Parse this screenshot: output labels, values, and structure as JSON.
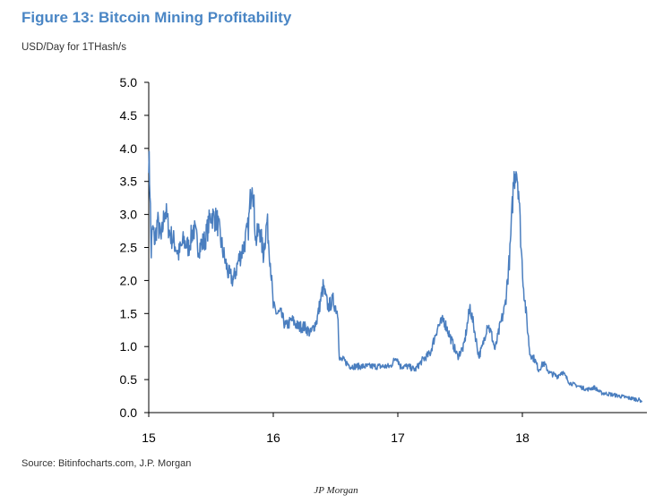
{
  "title": "Figure 13: Bitcoin Mining Profitability",
  "subtitle": "USD/Day for 1THash/s",
  "source": "Source: Bitinfocharts.com, J.P. Morgan",
  "credit": "JP Morgan",
  "colors": {
    "title": "#4a86c5",
    "series": "#4a7ebf",
    "axis": "#000000"
  },
  "chart_data": {
    "type": "line",
    "title": "Figure 13: Bitcoin Mining Profitability",
    "ylabel": "USD/Day for 1THash/s",
    "xlabel": "",
    "xlim": [
      15,
      19
    ],
    "ylim": [
      0,
      5
    ],
    "x_ticks": [
      15,
      16,
      17,
      18
    ],
    "x_tick_labels": [
      "15",
      "16",
      "17",
      "18"
    ],
    "y_ticks": [
      0,
      0.5,
      1,
      1.5,
      2,
      2.5,
      3,
      3.5,
      4,
      4.5,
      5
    ],
    "y_tick_labels": [
      "0.0",
      "0.5",
      "1.0",
      "1.5",
      "2.0",
      "2.5",
      "3.0",
      "3.5",
      "4.0",
      "4.5",
      "5.0"
    ],
    "grid": false,
    "series": [
      {
        "name": "USD/Day for 1THash/s",
        "x": [
          15.0,
          15.01,
          15.02,
          15.03,
          15.05,
          15.07,
          15.1,
          15.13,
          15.17,
          15.2,
          15.24,
          15.28,
          15.32,
          15.36,
          15.4,
          15.45,
          15.5,
          15.55,
          15.6,
          15.64,
          15.68,
          15.72,
          15.76,
          15.8,
          15.83,
          15.86,
          15.89,
          15.92,
          15.95,
          15.98,
          16.0,
          16.03,
          16.06,
          16.1,
          16.15,
          16.2,
          16.25,
          16.3,
          16.35,
          16.4,
          16.44,
          16.48,
          16.52,
          16.53,
          16.56,
          16.62,
          16.7,
          16.78,
          16.86,
          16.94,
          16.99,
          17.02,
          17.08,
          17.14,
          17.2,
          17.26,
          17.32,
          17.37,
          17.4,
          17.43,
          17.48,
          17.53,
          17.58,
          17.62,
          17.65,
          17.68,
          17.72,
          17.75,
          17.78,
          17.82,
          17.86,
          17.9,
          17.93,
          17.95,
          17.97,
          17.99,
          18.01,
          18.03,
          18.06,
          18.1,
          18.13,
          18.17,
          18.22,
          18.28,
          18.32,
          18.38,
          18.45,
          18.52,
          18.58,
          18.63,
          18.7,
          18.78,
          18.86,
          18.92,
          18.96
        ],
        "values": [
          3.9,
          3.4,
          2.4,
          2.8,
          2.6,
          2.9,
          2.6,
          3.1,
          2.7,
          2.6,
          2.4,
          2.6,
          2.5,
          2.8,
          2.5,
          2.6,
          3.0,
          2.9,
          2.4,
          2.1,
          2.0,
          2.3,
          2.5,
          2.8,
          3.6,
          2.6,
          2.8,
          2.4,
          2.9,
          2.2,
          1.6,
          1.5,
          1.5,
          1.3,
          1.4,
          1.3,
          1.3,
          1.2,
          1.4,
          1.9,
          1.6,
          1.7,
          1.5,
          0.8,
          0.8,
          0.7,
          0.7,
          0.7,
          0.7,
          0.7,
          0.85,
          0.7,
          0.7,
          0.65,
          0.8,
          0.9,
          1.3,
          1.4,
          1.25,
          1.1,
          0.85,
          1.0,
          1.6,
          1.2,
          0.85,
          1.0,
          1.35,
          1.2,
          0.95,
          1.3,
          1.6,
          2.4,
          3.5,
          3.75,
          3.4,
          2.5,
          1.9,
          1.5,
          0.9,
          0.8,
          0.65,
          0.75,
          0.6,
          0.55,
          0.62,
          0.45,
          0.4,
          0.35,
          0.38,
          0.3,
          0.28,
          0.25,
          0.22,
          0.2,
          0.18
        ]
      }
    ]
  }
}
